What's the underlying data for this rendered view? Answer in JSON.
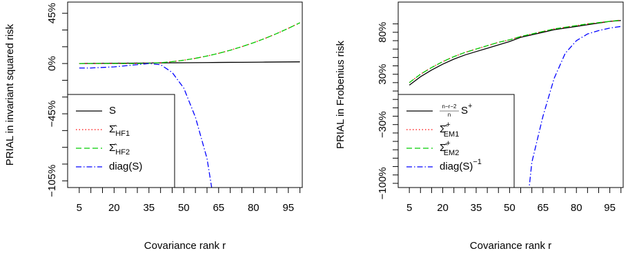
{
  "chart_data": [
    {
      "type": "line",
      "y_label": "PRIAL in invariant squared risk",
      "x_label": "Covariance rank r",
      "x": [
        5,
        10,
        15,
        20,
        25,
        30,
        35,
        40,
        45,
        50,
        55,
        60,
        65,
        70,
        75,
        80,
        85,
        90,
        95,
        100
      ],
      "xlim": [
        0,
        101
      ],
      "xticks": [
        5,
        20,
        35,
        50,
        65,
        80,
        95
      ],
      "xminorticks": [
        10,
        15,
        25,
        30,
        40,
        45,
        55,
        60,
        70,
        75,
        85,
        90,
        100
      ],
      "ylim": [
        -111,
        55
      ],
      "yticks": [
        {
          "value": 45,
          "label": "45%"
        },
        {
          "value": 0,
          "label": "0%"
        },
        {
          "value": -45,
          "label": "−45%"
        },
        {
          "value": -105,
          "label": "−105%"
        }
      ],
      "yminorticks": [
        30,
        15,
        -15,
        -30,
        -60,
        -75,
        -90
      ],
      "legend": "bottomleft",
      "series": [
        {
          "name": "S",
          "color": "#000000",
          "linestyle": "solid",
          "values": [
            0,
            0.08,
            0.16,
            0.24,
            0.32,
            0.4,
            0.47,
            0.55,
            0.63,
            0.71,
            0.79,
            0.87,
            0.95,
            1.03,
            1.1,
            1.18,
            1.26,
            1.34,
            1.42,
            1.5
          ]
        },
        {
          "name": "Σ̂",
          "name_sub": "HF1",
          "color": "#ff0000",
          "linestyle": "dotted",
          "values": [
            0,
            0,
            0,
            0,
            0,
            0,
            0.19,
            0.74,
            1.68,
            2.98,
            4.66,
            6.7,
            9.1,
            11.9,
            15.1,
            18.6,
            22.5,
            26.8,
            31.5,
            36.5
          ]
        },
        {
          "name": "Σ̂",
          "name_sub": "HF2",
          "color": "#00cd00",
          "linestyle": "dashed",
          "values": [
            0,
            0,
            0,
            0,
            0,
            0,
            0.19,
            0.74,
            1.68,
            2.98,
            4.66,
            6.7,
            9.1,
            11.9,
            15.1,
            18.6,
            22.5,
            26.8,
            31.5,
            36.5
          ]
        },
        {
          "name": "diag(S)",
          "color": "#0000ff",
          "linestyle": "dotdash",
          "values": [
            -4,
            -4,
            -3.5,
            -3,
            -2,
            -1,
            0,
            -1,
            -8,
            -22,
            -48,
            -85,
            -150,
            null,
            null,
            null,
            null,
            null,
            null,
            null
          ]
        }
      ]
    },
    {
      "type": "line",
      "y_label": "PRIAL in Frobenius risk",
      "x_label": "Covariance rank r",
      "x": [
        5,
        10,
        15,
        20,
        25,
        30,
        35,
        40,
        45,
        50,
        55,
        60,
        65,
        70,
        75,
        80,
        85,
        90,
        95,
        100
      ],
      "xlim": [
        0,
        101
      ],
      "xticks": [
        5,
        20,
        35,
        50,
        65,
        80,
        95
      ],
      "xminorticks": [
        10,
        15,
        25,
        30,
        40,
        45,
        55,
        60,
        70,
        75,
        85,
        90,
        100
      ],
      "ylim": [
        -105,
        116
      ],
      "yticks": [
        {
          "value": 80,
          "label": "80%"
        },
        {
          "value": 30,
          "label": "30%"
        },
        {
          "value": -30,
          "label": "−30%"
        },
        {
          "value": -100,
          "label": "−100%"
        }
      ],
      "yminorticks": [
        90,
        70,
        60,
        50,
        40,
        20,
        10,
        0,
        -10,
        -20,
        -40,
        -50,
        -60,
        -70,
        -80,
        -90
      ],
      "legend": "bottomleft",
      "series": [
        {
          "name": "S",
          "name_sup": "+",
          "name_frac": [
            "n−r−2",
            "n"
          ],
          "color": "#000000",
          "linestyle": "solid",
          "values": [
            17,
            27,
            35,
            42,
            48,
            53,
            57,
            61,
            65,
            69,
            74,
            77,
            80,
            83,
            85,
            87,
            89,
            91,
            93,
            94
          ]
        },
        {
          "name": "Σ̂",
          "name_sup": "+",
          "name_sub": "EM1",
          "color": "#ff0000",
          "linestyle": "dotted",
          "values": [
            20,
            30,
            38,
            45,
            51,
            56,
            60,
            64,
            68,
            71,
            75,
            78,
            81,
            84,
            86,
            88,
            90,
            91.5,
            93,
            94.5
          ]
        },
        {
          "name": "Σ̂",
          "name_sup": "+",
          "name_sub": "EM2",
          "color": "#00cd00",
          "linestyle": "dashed",
          "values": [
            20,
            30,
            38,
            45,
            51,
            56,
            60,
            64,
            68,
            71,
            75,
            78,
            81,
            84,
            86,
            88,
            90,
            91.5,
            93,
            94.5
          ]
        },
        {
          "name": "diag(S)",
          "name_sup": "−1",
          "color": "#0000ff",
          "linestyle": "dotdash",
          "values": [
            null,
            null,
            null,
            null,
            null,
            null,
            null,
            null,
            null,
            null,
            -200,
            -75,
            -20,
            25,
            55,
            70,
            78,
            82,
            85,
            87
          ]
        }
      ]
    }
  ]
}
